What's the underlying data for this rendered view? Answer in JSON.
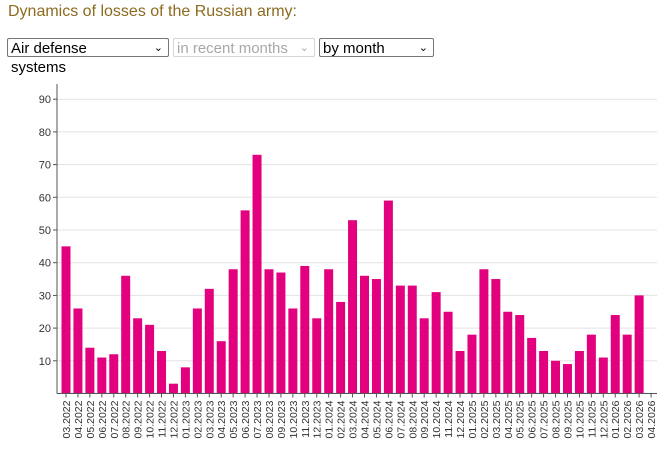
{
  "page": {
    "title": "Dynamics of losses of the Russian army:"
  },
  "controls": {
    "category": {
      "value": "Air defense systems",
      "enabled": true
    },
    "period": {
      "value": "in recent months",
      "enabled": false
    },
    "grouping": {
      "value": "by month",
      "enabled": true
    }
  },
  "colors": {
    "bar": "#e3007e",
    "title": "#8c6b1f",
    "grid": "#e3e3e3",
    "axis": "#555555"
  },
  "chart_data": {
    "type": "bar",
    "title": "",
    "xlabel": "",
    "ylabel": "",
    "ylim": [
      0,
      93
    ],
    "yticks": [
      10,
      20,
      30,
      40,
      50,
      60,
      70,
      80,
      90
    ],
    "grid": true,
    "legend": "none",
    "categories": [
      "03.2022",
      "04.2022",
      "05.2022",
      "06.2022",
      "07.2022",
      "08.2022",
      "09.2022",
      "10.2022",
      "11.2022",
      "12.2022",
      "01.2023",
      "02.2023",
      "03.2023",
      "04.2023",
      "05.2023",
      "06.2023",
      "07.2023",
      "08.2023",
      "09.2023",
      "10.2023",
      "11.2023",
      "12.2023",
      "01.2024",
      "02.2024",
      "03.2024",
      "04.2024",
      "05.2024",
      "06.2024",
      "07.2024",
      "08.2024",
      "09.2024",
      "10.2024",
      "11.2024",
      "12.2024",
      "01.2025",
      "02.2025",
      "03.2025",
      "04.2025",
      "05.2025",
      "06.2025",
      "07.2025",
      "08.2025",
      "09.2025",
      "10.2025",
      "11.2025",
      "12.2025",
      "01.2026",
      "02.2026",
      "03.2026",
      "04.2026"
    ],
    "series": [
      {
        "name": "Air defense systems",
        "values": [
          45,
          26,
          14,
          11,
          12,
          36,
          23,
          21,
          13,
          3,
          8,
          26,
          32,
          16,
          38,
          56,
          73,
          38,
          37,
          26,
          39,
          23,
          38,
          28,
          53,
          36,
          35,
          59,
          33,
          33,
          23,
          31,
          25,
          13,
          18,
          38,
          35,
          25,
          24,
          17,
          13,
          10,
          9,
          13,
          18,
          11,
          24,
          18,
          30,
          null
        ]
      }
    ]
  }
}
